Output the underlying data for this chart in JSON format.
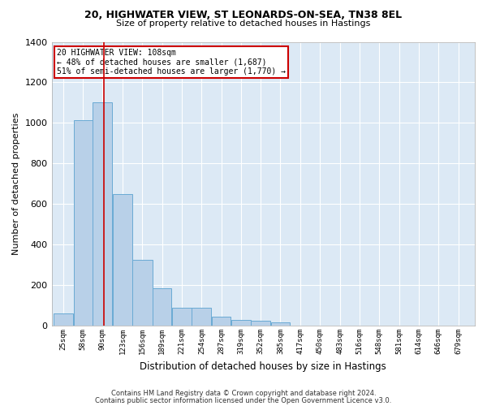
{
  "title1": "20, HIGHWATER VIEW, ST LEONARDS-ON-SEA, TN38 8EL",
  "title2": "Size of property relative to detached houses in Hastings",
  "xlabel": "Distribution of detached houses by size in Hastings",
  "ylabel": "Number of detached properties",
  "footer1": "Contains HM Land Registry data © Crown copyright and database right 2024.",
  "footer2": "Contains public sector information licensed under the Open Government Licence v3.0.",
  "bar_color": "#b8d0e8",
  "bar_edge_color": "#6aaad4",
  "background_color": "#dce9f5",
  "annotation_line1": "20 HIGHWATER VIEW: 108sqm",
  "annotation_line2": "← 48% of detached houses are smaller (1,687)",
  "annotation_line3": "51% of semi-detached houses are larger (1,770) →",
  "vline_x": 108,
  "vline_color": "#cc0000",
  "box_color": "#cc0000",
  "categories": [
    "25sqm",
    "58sqm",
    "90sqm",
    "123sqm",
    "156sqm",
    "189sqm",
    "221sqm",
    "254sqm",
    "287sqm",
    "319sqm",
    "352sqm",
    "385sqm",
    "417sqm",
    "450sqm",
    "483sqm",
    "516sqm",
    "548sqm",
    "581sqm",
    "614sqm",
    "646sqm",
    "679sqm"
  ],
  "bar_lefts": [
    25,
    58,
    90,
    123,
    156,
    189,
    221,
    254,
    287,
    319,
    352,
    385,
    417,
    450,
    483,
    516,
    548,
    581,
    614,
    646,
    679
  ],
  "bar_widths": [
    33,
    32,
    33,
    33,
    33,
    32,
    33,
    33,
    32,
    33,
    33,
    32,
    33,
    33,
    33,
    32,
    33,
    33,
    32,
    33,
    33
  ],
  "bar_heights": [
    60,
    1015,
    1100,
    650,
    325,
    185,
    90,
    90,
    45,
    30,
    25,
    15,
    0,
    0,
    0,
    0,
    0,
    0,
    0,
    0,
    0
  ],
  "ylim": [
    0,
    1400
  ],
  "yticks": [
    0,
    200,
    400,
    600,
    800,
    1000,
    1200,
    1400
  ],
  "figsize": [
    6.0,
    5.0
  ],
  "dpi": 100
}
